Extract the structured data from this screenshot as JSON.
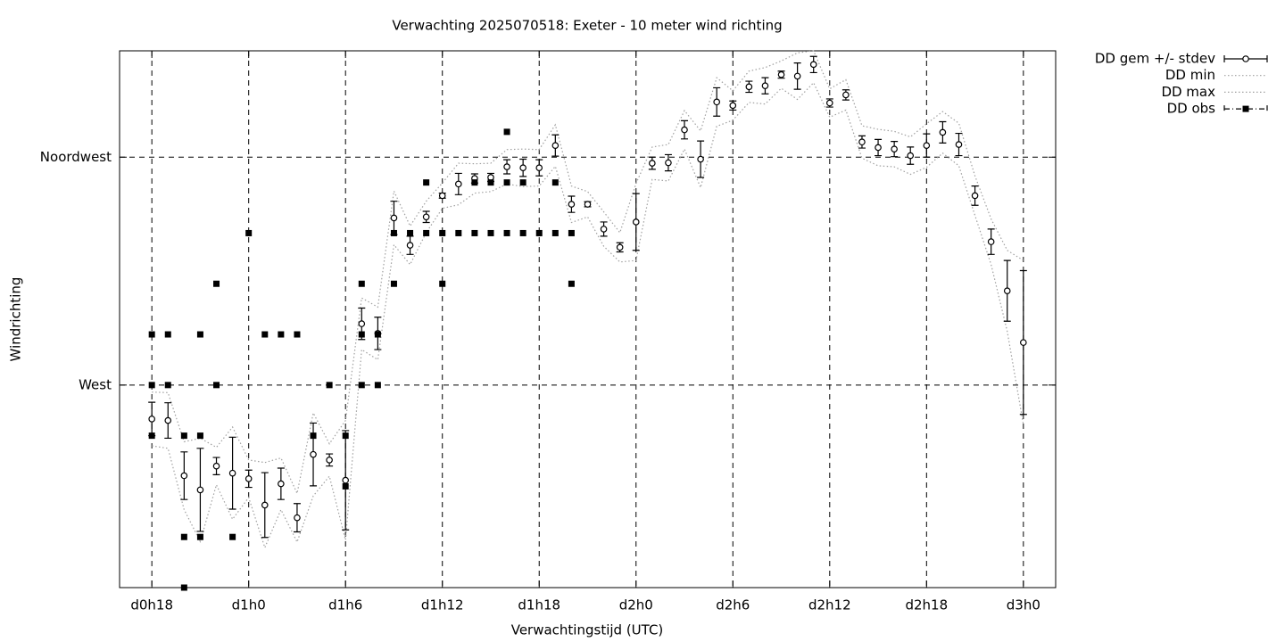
{
  "chart_data": {
    "type": "errorbar",
    "title": "Verwachting 2025070518: Exeter - 10 meter wind richting",
    "xlabel": "Verwachtingstijd (UTC)",
    "ylabel": "Windrichting",
    "xlim": [
      16,
      74
    ],
    "ylim": [
      230,
      336
    ],
    "xticks": [
      {
        "value": 18,
        "label": "d0h18"
      },
      {
        "value": 24,
        "label": "d1h0"
      },
      {
        "value": 30,
        "label": "d1h6"
      },
      {
        "value": 36,
        "label": "d1h12"
      },
      {
        "value": 42,
        "label": "d1h18"
      },
      {
        "value": 48,
        "label": "d2h0"
      },
      {
        "value": 54,
        "label": "d2h6"
      },
      {
        "value": 60,
        "label": "d2h12"
      },
      {
        "value": 66,
        "label": "d2h18"
      },
      {
        "value": 72,
        "label": "d3h0"
      }
    ],
    "yticks": [
      {
        "value": 270,
        "label": "West"
      },
      {
        "value": 315,
        "label": "Noordwest"
      }
    ],
    "grid": true,
    "legend": "outside-top-right",
    "series": [
      {
        "name": "DD gem +/- stdev",
        "color": "#000000",
        "style": "errorbars",
        "x": [
          18,
          19,
          20,
          21,
          22,
          23,
          24,
          25,
          26,
          27,
          28,
          29,
          30,
          31,
          32,
          33,
          34,
          35,
          36,
          37,
          38,
          39,
          40,
          41,
          42,
          43,
          44,
          45,
          46,
          47,
          48,
          49,
          50,
          51,
          52,
          53,
          54,
          55,
          56,
          57,
          58,
          59,
          60,
          61,
          62,
          63,
          64,
          65,
          66,
          67,
          68,
          69,
          70,
          71,
          72
        ],
        "values": [
          263.3,
          263,
          252.1,
          249.3,
          254,
          252.6,
          251.5,
          246.3,
          250.5,
          243.8,
          256.3,
          255.2,
          251.2,
          282.1,
          280.2,
          303,
          297.6,
          303.2,
          307.4,
          309.7,
          310.8,
          311,
          313.1,
          312.9,
          312.9,
          317.3,
          305.7,
          305.7,
          300.8,
          297.2,
          302.2,
          313.8,
          313.9,
          320.4,
          314.6,
          325.9,
          325.2,
          328.9,
          329.1,
          331.3,
          331,
          333.3,
          325.7,
          327.3,
          318,
          316.9,
          316.6,
          315.3,
          317.3,
          319.9,
          317.5,
          307.4,
          298.3,
          288.6,
          278.4
        ],
        "errors": [
          3.3,
          3.5,
          4.7,
          8.2,
          1.7,
          7.1,
          1.7,
          6.4,
          3.1,
          2.8,
          6.2,
          1.2,
          9.8,
          3.1,
          3.2,
          3.3,
          1.8,
          1.1,
          0.5,
          2.1,
          0.9,
          0.8,
          1.4,
          1.7,
          1.6,
          2.1,
          1.6,
          0.5,
          1.4,
          0.9,
          5.6,
          1.2,
          1.6,
          1.8,
          3.6,
          2.8,
          0.9,
          1.1,
          1.6,
          0.7,
          2.6,
          1.6,
          0.8,
          1,
          1.2,
          1.6,
          1.5,
          1.7,
          2.3,
          2.1,
          2.2,
          1.9,
          2.5,
          6,
          14.2
        ]
      },
      {
        "name": "DD min",
        "color": "#a0a0a0",
        "style": "dotted",
        "x": [
          18,
          19,
          20,
          21,
          22,
          23,
          24,
          25,
          26,
          27,
          28,
          29,
          30,
          31,
          32,
          33,
          34,
          35,
          36,
          37,
          38,
          39,
          40,
          41,
          42,
          43,
          44,
          45,
          46,
          47,
          48,
          49,
          50,
          51,
          52,
          53,
          54,
          55,
          56,
          57,
          58,
          59,
          60,
          61,
          62,
          63,
          64,
          65,
          66,
          67,
          68,
          69,
          70,
          71,
          72
        ],
        "values": [
          258,
          257.5,
          245.4,
          239.1,
          250.3,
          243.5,
          247.8,
          237.9,
          245.4,
          239,
          248.1,
          252,
          239.4,
          277,
          275,
          297.7,
          293.8,
          300.1,
          304.9,
          305.6,
          307.9,
          308.2,
          309.7,
          309.2,
          309.3,
          313.2,
          302.1,
          303.2,
          297.4,
          294.3,
          294.6,
          310.6,
          310.3,
          316.6,
          309,
          321.1,
          322.3,
          325.8,
          325.5,
          328.6,
          326.4,
          329.7,
          322.9,
          324.3,
          314.8,
          313.3,
          313.1,
          311.6,
          313,
          315.8,
          313.3,
          303.5,
          293.8,
          280.6,
          262.2
        ]
      },
      {
        "name": "DD max",
        "color": "#a0a0a0",
        "style": "dotted",
        "x": [
          18,
          19,
          20,
          21,
          22,
          23,
          24,
          25,
          26,
          27,
          28,
          29,
          30,
          31,
          32,
          33,
          34,
          35,
          36,
          37,
          38,
          39,
          40,
          41,
          42,
          43,
          44,
          45,
          46,
          47,
          48,
          49,
          50,
          51,
          52,
          53,
          54,
          55,
          56,
          57,
          58,
          59,
          60,
          61,
          62,
          63,
          64,
          65,
          66,
          67,
          68,
          69,
          70,
          71,
          72
        ],
        "values": [
          268.6,
          268.5,
          258.8,
          259.5,
          257.7,
          261.7,
          255.2,
          254.7,
          255.6,
          248.6,
          264.5,
          258.4,
          263,
          287.2,
          285.4,
          308.3,
          301.4,
          306.3,
          309.9,
          313.8,
          313.7,
          313.8,
          316.5,
          316.6,
          316.5,
          321.4,
          309.3,
          308.2,
          304.2,
          300.1,
          309.8,
          317,
          317.5,
          324.2,
          320.2,
          330.7,
          328.1,
          332,
          332.7,
          334,
          335.6,
          336,
          328.5,
          330.3,
          321.2,
          320.5,
          320.1,
          319,
          321.6,
          324,
          321.7,
          311.3,
          302.8,
          296.6,
          294.6
        ]
      },
      {
        "name": "DD obs",
        "color": "#000000",
        "style": "points",
        "x": [
          18,
          18,
          18,
          19,
          19,
          20,
          20,
          20,
          21,
          21,
          21,
          22,
          22,
          23,
          24,
          25,
          26,
          27,
          28,
          29,
          30,
          30,
          31,
          31,
          31,
          32,
          32,
          33,
          33,
          34,
          35,
          35,
          36,
          36,
          37,
          38,
          38,
          39,
          39,
          40,
          40,
          40,
          41,
          41,
          42,
          43,
          43,
          44,
          44
        ],
        "values": [
          280,
          270,
          260,
          280,
          270,
          260,
          240,
          230,
          280,
          260,
          240,
          290,
          270,
          240,
          300,
          280,
          280,
          280,
          260,
          270,
          260,
          250,
          290,
          280,
          270,
          280,
          270,
          300,
          290,
          300,
          310,
          300,
          300,
          290,
          300,
          310,
          300,
          310,
          300,
          320,
          310,
          300,
          310,
          300,
          300,
          310,
          300,
          300,
          290
        ]
      }
    ]
  }
}
